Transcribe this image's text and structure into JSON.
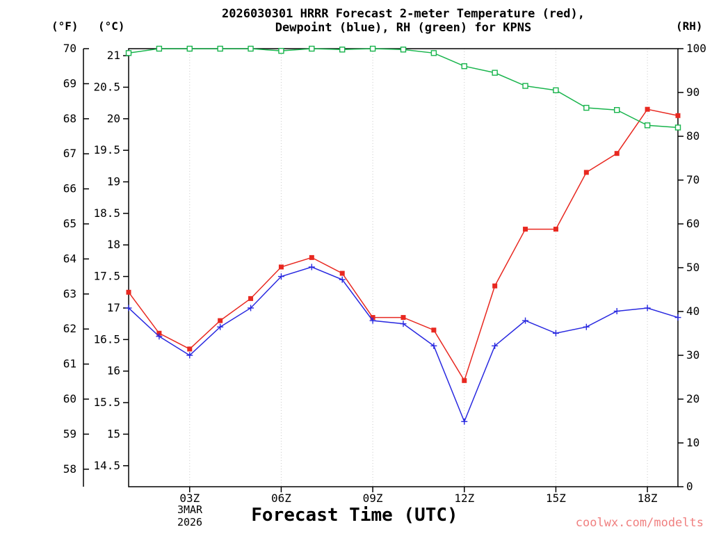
{
  "page": {
    "watermark": "coolwx.com/modelts"
  },
  "chart_data": {
    "type": "line",
    "title_line1": "2026030301 HRRR Forecast 2-meter Temperature (red),",
    "title_line2": "Dewpoint (blue), RH (green) for KPNS",
    "xlabel": "Forecast Time (UTC)",
    "x_date_line1": "3MAR",
    "x_date_line2": "2026",
    "station": "KPNS",
    "model": "HRRR",
    "run": "2026030301",
    "x_hours_utc": [
      1,
      2,
      3,
      4,
      5,
      6,
      7,
      8,
      9,
      10,
      11,
      12,
      13,
      14,
      15,
      16,
      17,
      18,
      19
    ],
    "x_ticks": [
      {
        "hour": 3,
        "label": "03Z"
      },
      {
        "hour": 6,
        "label": "06Z"
      },
      {
        "hour": 9,
        "label": "09Z"
      },
      {
        "hour": 12,
        "label": "12Z"
      },
      {
        "hour": 15,
        "label": "15Z"
      },
      {
        "hour": 18,
        "label": "18Z"
      }
    ],
    "axes": {
      "fahrenheit": {
        "unit_label": "(°F)",
        "ticks": [
          58,
          59,
          60,
          61,
          62,
          63,
          64,
          65,
          66,
          67,
          68,
          69,
          70
        ],
        "range": [
          57.5,
          70
        ]
      },
      "celsius": {
        "unit_label": "(°C)",
        "ticks": [
          14.5,
          15,
          15.5,
          16,
          16.5,
          17,
          17.5,
          18,
          18.5,
          19,
          19.5,
          20,
          20.5,
          21
        ],
        "range": [
          14.167,
          21.111
        ]
      },
      "rh": {
        "unit_label": "(RH)",
        "ticks": [
          0,
          10,
          20,
          30,
          40,
          50,
          60,
          70,
          80,
          90,
          100
        ],
        "range": [
          0,
          100
        ]
      }
    },
    "series": [
      {
        "id": "temperature",
        "name": "2-meter Temperature",
        "unit": "°C",
        "axis": "celsius",
        "color": "#e82820",
        "marker": "filled-square",
        "values": [
          17.25,
          16.6,
          16.35,
          16.8,
          17.15,
          17.65,
          17.8,
          17.55,
          16.85,
          16.85,
          16.65,
          15.85,
          17.35,
          18.25,
          18.25,
          19.15,
          19.45,
          20.15,
          20.05
        ]
      },
      {
        "id": "dewpoint",
        "name": "Dewpoint",
        "unit": "°C",
        "axis": "celsius",
        "color": "#2828e0",
        "marker": "plus",
        "values": [
          17.0,
          16.55,
          16.25,
          16.7,
          17.0,
          17.5,
          17.65,
          17.45,
          16.8,
          16.75,
          16.4,
          15.2,
          16.4,
          16.8,
          16.6,
          16.7,
          16.95,
          17.0,
          16.85
        ]
      },
      {
        "id": "rh",
        "name": "RH",
        "unit": "%",
        "axis": "rh",
        "color": "#18b44c",
        "marker": "open-square",
        "values": [
          99,
          100,
          100,
          100,
          100,
          99.5,
          100,
          99.8,
          100,
          99.8,
          99,
          96,
          94.5,
          91.5,
          90.5,
          86.5,
          86,
          82.5,
          82
        ]
      }
    ]
  }
}
